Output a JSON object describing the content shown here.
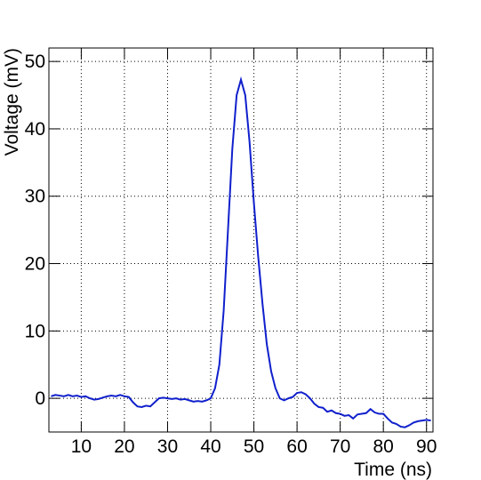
{
  "chart_data": {
    "type": "line",
    "x_label": "Time (ns)",
    "y_label": "Voltage (mV)",
    "x": [
      3,
      4,
      5,
      6,
      7,
      8,
      9,
      10,
      11,
      12,
      13,
      14,
      15,
      16,
      17,
      18,
      19,
      20,
      21,
      22,
      23,
      24,
      25,
      26,
      27,
      28,
      29,
      30,
      31,
      32,
      33,
      34,
      35,
      36,
      37,
      38,
      39,
      40,
      41,
      42,
      43,
      44,
      45,
      46,
      47,
      48,
      49,
      50,
      51,
      52,
      53,
      54,
      55,
      56,
      57,
      58,
      59,
      60,
      61,
      62,
      63,
      64,
      65,
      66,
      67,
      68,
      69,
      70,
      71,
      72,
      73,
      74,
      75,
      76,
      77,
      78,
      79,
      80,
      81,
      82,
      83,
      84,
      85,
      86,
      87,
      88,
      89,
      90,
      91
    ],
    "series": [
      {
        "name": "Voltage",
        "color": "#1020cc",
        "values": [
          0.3,
          0.5,
          0.4,
          0.3,
          0.5,
          0.3,
          0.4,
          0.2,
          0.3,
          0,
          -0.2,
          -0.1,
          0.1,
          0.3,
          0.4,
          0.3,
          0.5,
          0.3,
          0.2,
          -0.6,
          -1.2,
          -1.3,
          -1.1,
          -1.2,
          -0.6,
          0,
          0.1,
          0,
          -0.1,
          0,
          -0.2,
          -0.1,
          -0.3,
          -0.5,
          -0.4,
          -0.5,
          -0.3,
          0,
          1.5,
          5,
          13,
          25,
          37,
          45,
          47.3,
          45,
          38,
          29,
          21,
          14,
          8,
          4,
          1.5,
          0,
          -0.3,
          0,
          0.2,
          0.8,
          0.9,
          0.6,
          0,
          -0.8,
          -1.3,
          -1.4,
          -2,
          -1.8,
          -2.2,
          -2.3,
          -2.6,
          -2.5,
          -3,
          -2.4,
          -2.3,
          -2.2,
          -1.6,
          -2.1,
          -2.3,
          -2.3,
          -3,
          -3.6,
          -3.8,
          -4.2,
          -4.3,
          -4,
          -3.6,
          -3.4,
          -3.3,
          -3.2,
          -3.3
        ]
      }
    ],
    "xlim": [
      2.5,
      91.5
    ],
    "ylim": [
      -5,
      52
    ],
    "xticks": [
      10,
      20,
      30,
      40,
      50,
      60,
      70,
      80,
      90
    ],
    "yticks": [
      0,
      10,
      20,
      30,
      40,
      50
    ],
    "grid": true
  }
}
